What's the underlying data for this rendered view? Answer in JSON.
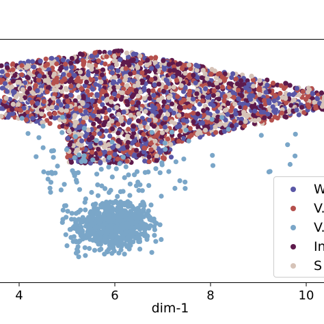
{
  "chart_data": {
    "type": "scatter",
    "xlabel": "dim-1",
    "ylabel": "",
    "title": "",
    "xlim": [
      3.6,
      10.4
    ],
    "ylim": [
      -2.5,
      6.5
    ],
    "xticks": [
      "4",
      "6",
      "8",
      "10"
    ],
    "xtick_values": [
      4,
      6,
      8,
      10
    ],
    "grid": false,
    "legend_position": "right",
    "series": [
      {
        "name": "W",
        "color": "#5a57a6"
      },
      {
        "name": "V.",
        "color": "#b5504d"
      },
      {
        "name": "V.",
        "color": "#7aa6c8"
      },
      {
        "name": "In",
        "color": "#5e1a4c"
      },
      {
        "name": "S",
        "color": "#d6c3b8"
      }
    ],
    "clusters": [
      {
        "series": "mixed (W, V., In, S)",
        "shape": "wide band",
        "x_range": [
          3.6,
          10.4
        ],
        "y_range": [
          1.2,
          6.1
        ],
        "points": "~2700"
      },
      {
        "series": "V. (light blue)",
        "shape": "compact blob",
        "x_range": [
          5.0,
          6.9
        ],
        "y_range": [
          -1.6,
          0.8
        ],
        "points": "~700"
      },
      {
        "series": "V. (light blue)",
        "shape": "sparse bridge",
        "x_range": [
          4.5,
          7.5
        ],
        "y_range": [
          0.8,
          2.5
        ],
        "points": "~60"
      }
    ]
  }
}
